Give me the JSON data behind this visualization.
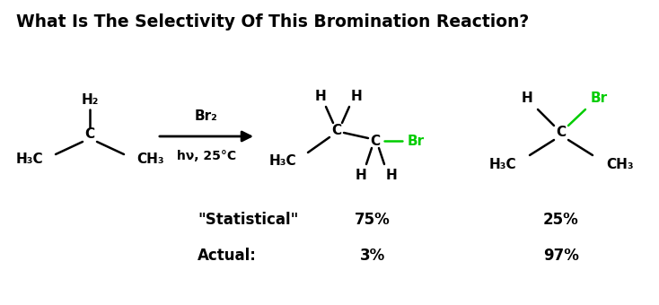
{
  "title": "What Is The Selectivity Of This Bromination Reaction?",
  "title_fontsize": 13.5,
  "title_fontweight": "bold",
  "background_color": "#ffffff",
  "text_color": "#000000",
  "green_color": "#00cc00",
  "font_family": "DejaVu Sans",
  "arrow": {
    "label_top": "Br₂",
    "label_bottom": "hν, 25°C"
  },
  "stats": {
    "statistical_label": "\"Statistical\"",
    "actual_label": "Actual:",
    "product1_statistical": "75%",
    "product2_statistical": "25%",
    "product1_actual": "3%",
    "product2_actual": "97%",
    "fontsize": 12,
    "fontweight": "bold"
  }
}
